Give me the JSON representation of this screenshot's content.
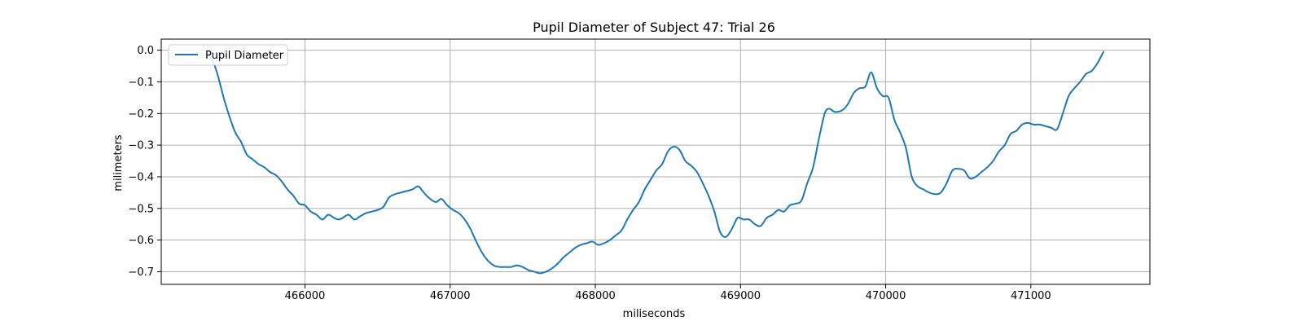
{
  "chart_data": {
    "type": "line",
    "title": "Pupil Diameter of Subject 47: Trial 26",
    "xlabel": "miliseconds",
    "ylabel": "milimeters",
    "xlim": [
      465010,
      471820
    ],
    "ylim": [
      -0.74,
      0.035
    ],
    "xticks": [
      466000,
      467000,
      468000,
      469000,
      470000,
      471000
    ],
    "yticks": [
      0.0,
      -0.1,
      -0.2,
      -0.3,
      -0.4,
      -0.5,
      -0.6,
      -0.7
    ],
    "xtick_labels": [
      "466000",
      "467000",
      "468000",
      "469000",
      "470000",
      "471000"
    ],
    "ytick_labels": [
      "0.0",
      "−0.1",
      "−0.2",
      "−0.3",
      "−0.4",
      "−0.5",
      "−0.6",
      "−0.7"
    ],
    "grid": true,
    "legend": {
      "position": "top-left",
      "entries": [
        "Pupil Diameter"
      ]
    },
    "series": [
      {
        "name": "Pupil Diameter",
        "color": "#1f77b4",
        "x": [
          465330,
          465370,
          465400,
          465440,
          465480,
          465520,
          465560,
          465600,
          465640,
          465680,
          465720,
          465760,
          465800,
          465840,
          465880,
          465920,
          465960,
          466000,
          466040,
          466080,
          466120,
          466160,
          466200,
          466230,
          466260,
          466300,
          466340,
          466380,
          466420,
          466460,
          466500,
          466540,
          466580,
          466620,
          466660,
          466700,
          466740,
          466780,
          466810,
          466850,
          466900,
          466940,
          466980,
          467020,
          467060,
          467100,
          467140,
          467180,
          467220,
          467260,
          467300,
          467340,
          467380,
          467420,
          467460,
          467500,
          467540,
          467580,
          467620,
          467660,
          467700,
          467740,
          467780,
          467820,
          467860,
          467900,
          467940,
          467980,
          468020,
          468060,
          468100,
          468140,
          468180,
          468220,
          468260,
          468300,
          468340,
          468380,
          468420,
          468460,
          468500,
          468540,
          468580,
          468620,
          468660,
          468700,
          468740,
          468780,
          468820,
          468860,
          468900,
          468940,
          468980,
          469020,
          469060,
          469100,
          469140,
          469180,
          469220,
          469260,
          469300,
          469340,
          469380,
          469420,
          469460,
          469500,
          469540,
          469580,
          469610,
          469650,
          469700,
          469740,
          469780,
          469820,
          469860,
          469900,
          469940,
          469980,
          470020,
          470060,
          470100,
          470140,
          470180,
          470220,
          470260,
          470300,
          470340,
          470380,
          470420,
          470460,
          470500,
          470540,
          470580,
          470620,
          470660,
          470700,
          470740,
          470780,
          470820,
          470860,
          470900,
          470940,
          470980,
          471020,
          471060,
          471100,
          471140,
          471180,
          471220,
          471260,
          471300,
          471340,
          471380,
          471420,
          471460,
          471500
        ],
        "values": [
          -0.01,
          -0.04,
          -0.08,
          -0.15,
          -0.21,
          -0.26,
          -0.29,
          -0.33,
          -0.345,
          -0.36,
          -0.37,
          -0.385,
          -0.395,
          -0.415,
          -0.44,
          -0.46,
          -0.485,
          -0.49,
          -0.51,
          -0.52,
          -0.535,
          -0.52,
          -0.53,
          -0.535,
          -0.53,
          -0.52,
          -0.535,
          -0.525,
          -0.515,
          -0.51,
          -0.505,
          -0.495,
          -0.465,
          -0.455,
          -0.45,
          -0.445,
          -0.44,
          -0.43,
          -0.445,
          -0.465,
          -0.48,
          -0.47,
          -0.49,
          -0.505,
          -0.515,
          -0.535,
          -0.565,
          -0.605,
          -0.64,
          -0.665,
          -0.68,
          -0.685,
          -0.685,
          -0.685,
          -0.68,
          -0.685,
          -0.695,
          -0.7,
          -0.705,
          -0.7,
          -0.69,
          -0.675,
          -0.655,
          -0.64,
          -0.625,
          -0.615,
          -0.61,
          -0.605,
          -0.615,
          -0.61,
          -0.6,
          -0.585,
          -0.57,
          -0.535,
          -0.505,
          -0.48,
          -0.44,
          -0.41,
          -0.38,
          -0.36,
          -0.32,
          -0.305,
          -0.315,
          -0.35,
          -0.365,
          -0.385,
          -0.42,
          -0.46,
          -0.51,
          -0.575,
          -0.59,
          -0.565,
          -0.53,
          -0.535,
          -0.535,
          -0.55,
          -0.555,
          -0.53,
          -0.52,
          -0.505,
          -0.51,
          -0.49,
          -0.485,
          -0.475,
          -0.42,
          -0.37,
          -0.28,
          -0.2,
          -0.185,
          -0.195,
          -0.19,
          -0.17,
          -0.135,
          -0.12,
          -0.115,
          -0.07,
          -0.12,
          -0.145,
          -0.15,
          -0.22,
          -0.26,
          -0.31,
          -0.4,
          -0.43,
          -0.44,
          -0.45,
          -0.455,
          -0.45,
          -0.42,
          -0.38,
          -0.375,
          -0.38,
          -0.405,
          -0.4,
          -0.385,
          -0.37,
          -0.35,
          -0.32,
          -0.3,
          -0.265,
          -0.255,
          -0.235,
          -0.23,
          -0.235,
          -0.235,
          -0.24,
          -0.245,
          -0.25,
          -0.2,
          -0.145,
          -0.12,
          -0.1,
          -0.075,
          -0.065,
          -0.04,
          -0.005
        ]
      }
    ]
  }
}
